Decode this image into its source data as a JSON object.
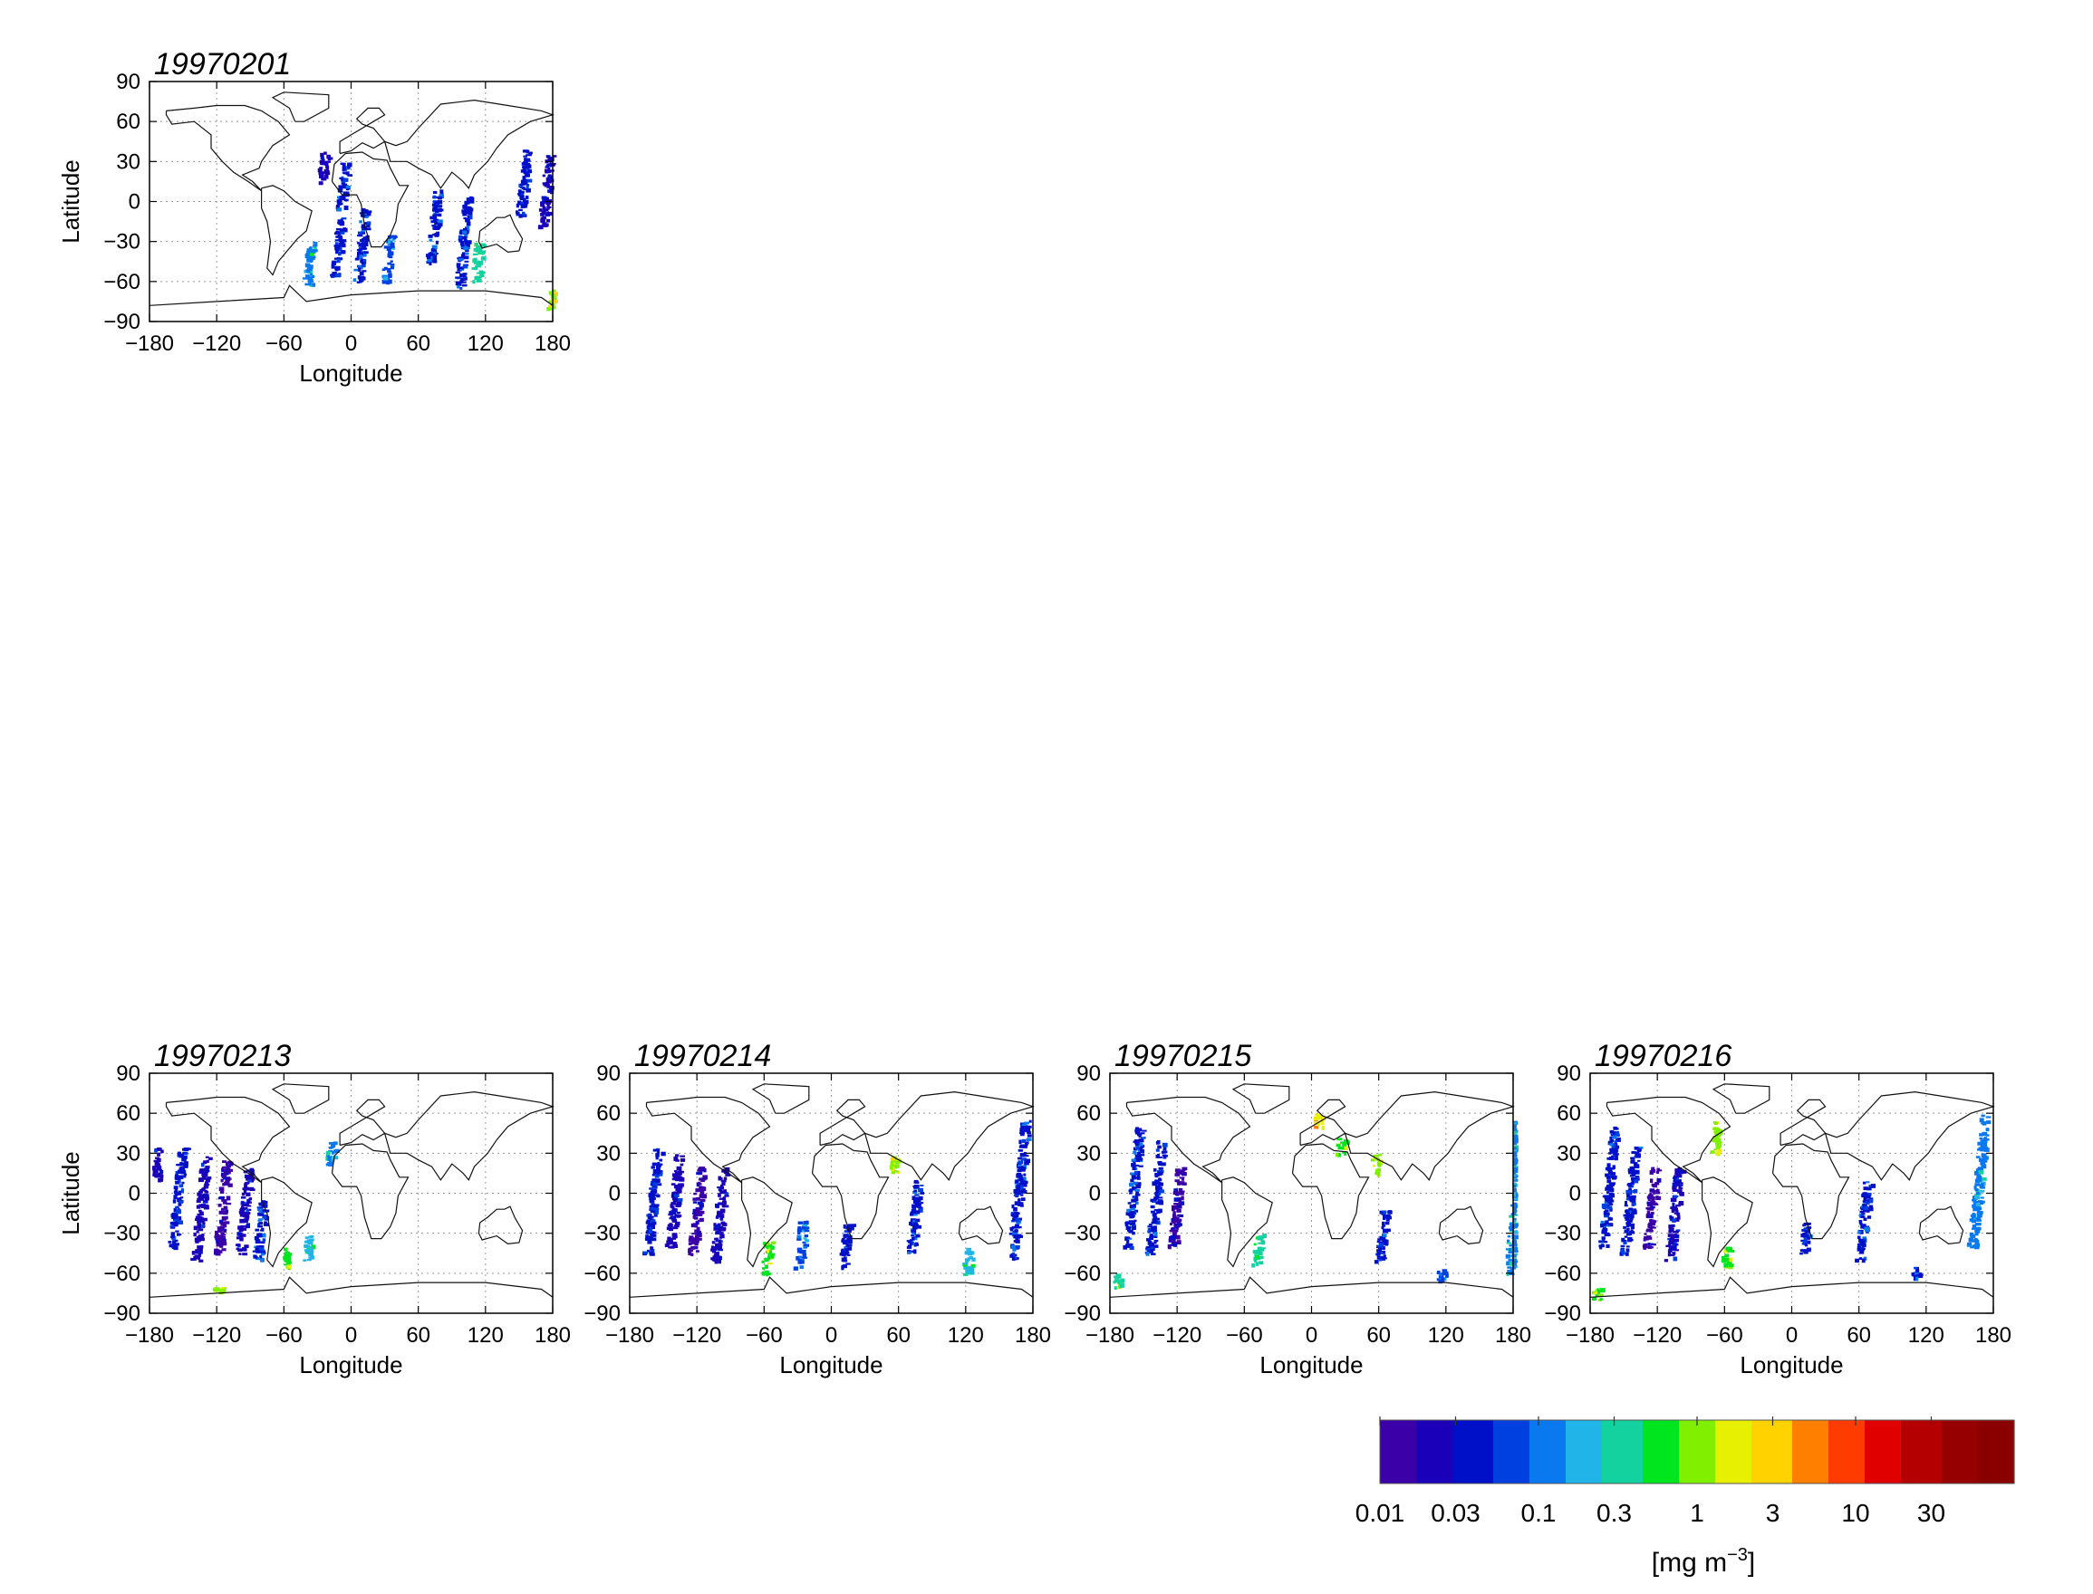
{
  "figure": {
    "axis_xlabel": "Longitude",
    "axis_ylabel": "Latitude",
    "xticks": [
      -180,
      -120,
      -60,
      0,
      60,
      120,
      180
    ],
    "yticks": [
      90,
      60,
      30,
      0,
      -30,
      -60,
      -90
    ],
    "xlim": [
      -180,
      180
    ],
    "ylim": [
      -90,
      90
    ]
  },
  "chart_data": [
    {
      "type": "heatmap",
      "title": "19970201",
      "xlabel": "Longitude",
      "ylabel": "Latitude",
      "xlim": [
        -180,
        180
      ],
      "ylim": [
        -90,
        90
      ],
      "grid": true,
      "swaths": [
        {
          "lon": -27,
          "lat_range": [
            15,
            38
          ],
          "value": 0.02
        },
        {
          "lon": -10,
          "lat_range": [
            -5,
            30
          ],
          "value": 0.04
        },
        {
          "lon": -40,
          "lat_range": [
            -62,
            -30
          ],
          "value": 0.15
        },
        {
          "lon": -15,
          "lat_range": [
            -55,
            -10
          ],
          "value": 0.03
        },
        {
          "lon": 5,
          "lat_range": [
            -60,
            -5
          ],
          "value": 0.04
        },
        {
          "lon": 30,
          "lat_range": [
            -60,
            -25
          ],
          "value": 0.08
        },
        {
          "lon": 70,
          "lat_range": [
            -45,
            10
          ],
          "value": 0.05
        },
        {
          "lon": 95,
          "lat_range": [
            -65,
            5
          ],
          "value": 0.04
        },
        {
          "lon": 110,
          "lat_range": [
            -60,
            -30
          ],
          "value": 0.3
        },
        {
          "lon": 150,
          "lat_range": [
            -10,
            40
          ],
          "value": 0.03
        },
        {
          "lon": 170,
          "lat_range": [
            -20,
            35
          ],
          "value": 0.02
        },
        {
          "lon": 178,
          "lat_range": [
            -80,
            -65
          ],
          "value": 1.0
        }
      ]
    },
    {
      "type": "heatmap",
      "title": "19970213",
      "xlabel": "Longitude",
      "ylabel": "Latitude",
      "xlim": [
        -180,
        180
      ],
      "ylim": [
        -90,
        90
      ],
      "grid": true,
      "swaths": [
        {
          "lon": -175,
          "lat_range": [
            10,
            35
          ],
          "value": 0.02
        },
        {
          "lon": -160,
          "lat_range": [
            -40,
            35
          ],
          "value": 0.03
        },
        {
          "lon": -140,
          "lat_range": [
            -50,
            30
          ],
          "value": 0.02
        },
        {
          "lon": -120,
          "lat_range": [
            -45,
            25
          ],
          "value": 0.015
        },
        {
          "lon": -100,
          "lat_range": [
            -45,
            20
          ],
          "value": 0.02
        },
        {
          "lon": -85,
          "lat_range": [
            -50,
            -5
          ],
          "value": 0.04
        },
        {
          "lon": -60,
          "lat_range": [
            -55,
            -40
          ],
          "value": 0.5
        },
        {
          "lon": -40,
          "lat_range": [
            -50,
            -30
          ],
          "value": 0.2
        },
        {
          "lon": -20,
          "lat_range": [
            20,
            40
          ],
          "value": 0.1
        },
        {
          "lon": -120,
          "lat_range": [
            -75,
            -70
          ],
          "value": 0.8
        }
      ]
    },
    {
      "type": "heatmap",
      "title": "19970214",
      "xlabel": "Longitude",
      "ylabel": "Latitude",
      "xlim": [
        -180,
        180
      ],
      "ylim": [
        -90,
        90
      ],
      "grid": true,
      "swaths": [
        {
          "lon": -165,
          "lat_range": [
            -45,
            35
          ],
          "value": 0.03
        },
        {
          "lon": -145,
          "lat_range": [
            -40,
            30
          ],
          "value": 0.02
        },
        {
          "lon": -125,
          "lat_range": [
            -45,
            20
          ],
          "value": 0.015
        },
        {
          "lon": -105,
          "lat_range": [
            -50,
            20
          ],
          "value": 0.02
        },
        {
          "lon": -60,
          "lat_range": [
            -60,
            -35
          ],
          "value": 0.6
        },
        {
          "lon": -30,
          "lat_range": [
            -55,
            -20
          ],
          "value": 0.08
        },
        {
          "lon": 10,
          "lat_range": [
            -55,
            -20
          ],
          "value": 0.04
        },
        {
          "lon": 55,
          "lat_range": [
            15,
            30
          ],
          "value": 0.8
        },
        {
          "lon": 70,
          "lat_range": [
            -45,
            10
          ],
          "value": 0.05
        },
        {
          "lon": 120,
          "lat_range": [
            -60,
            -40
          ],
          "value": 0.2
        },
        {
          "lon": 160,
          "lat_range": [
            -50,
            55
          ],
          "value": 0.05
        }
      ]
    },
    {
      "type": "heatmap",
      "title": "19970215",
      "xlabel": "Longitude",
      "ylabel": "Latitude",
      "xlim": [
        -180,
        180
      ],
      "ylim": [
        -90,
        90
      ],
      "grid": true,
      "swaths": [
        {
          "lon": -165,
          "lat_range": [
            -40,
            50
          ],
          "value": 0.05
        },
        {
          "lon": -145,
          "lat_range": [
            -45,
            40
          ],
          "value": 0.03
        },
        {
          "lon": -125,
          "lat_range": [
            -40,
            20
          ],
          "value": 0.015
        },
        {
          "lon": -50,
          "lat_range": [
            -55,
            -30
          ],
          "value": 0.3
        },
        {
          "lon": 5,
          "lat_range": [
            50,
            60
          ],
          "value": 2.0
        },
        {
          "lon": 25,
          "lat_range": [
            30,
            42
          ],
          "value": 0.5
        },
        {
          "lon": 55,
          "lat_range": [
            15,
            30
          ],
          "value": 0.8
        },
        {
          "lon": 60,
          "lat_range": [
            -50,
            -10
          ],
          "value": 0.04
        },
        {
          "lon": 115,
          "lat_range": [
            -65,
            -55
          ],
          "value": 0.08
        },
        {
          "lon": 175,
          "lat_range": [
            -60,
            55
          ],
          "value": 0.15
        },
        {
          "lon": -175,
          "lat_range": [
            -70,
            -60
          ],
          "value": 0.4
        }
      ]
    },
    {
      "type": "heatmap",
      "title": "19970216",
      "xlabel": "Longitude",
      "ylabel": "Latitude",
      "xlim": [
        -180,
        180
      ],
      "ylim": [
        -90,
        90
      ],
      "grid": true,
      "swaths": [
        {
          "lon": -170,
          "lat_range": [
            -40,
            50
          ],
          "value": 0.04
        },
        {
          "lon": -150,
          "lat_range": [
            -45,
            35
          ],
          "value": 0.03
        },
        {
          "lon": -130,
          "lat_range": [
            -40,
            20
          ],
          "value": 0.015
        },
        {
          "lon": -110,
          "lat_range": [
            -50,
            20
          ],
          "value": 0.02
        },
        {
          "lon": -60,
          "lat_range": [
            -55,
            -40
          ],
          "value": 0.5
        },
        {
          "lon": -70,
          "lat_range": [
            30,
            55
          ],
          "value": 0.8
        },
        {
          "lon": 10,
          "lat_range": [
            -45,
            -20
          ],
          "value": 0.04
        },
        {
          "lon": 60,
          "lat_range": [
            -50,
            10
          ],
          "value": 0.04
        },
        {
          "lon": 110,
          "lat_range": [
            -65,
            -55
          ],
          "value": 0.05
        },
        {
          "lon": 160,
          "lat_range": [
            -40,
            60
          ],
          "value": 0.1
        },
        {
          "lon": -175,
          "lat_range": [
            -80,
            -70
          ],
          "value": 0.6
        }
      ]
    }
  ],
  "colorbar": {
    "ticks": [
      "0.01",
      "0.03",
      "0.1",
      "0.3",
      "1",
      "3",
      "10",
      "30"
    ],
    "tick_values": [
      0.01,
      0.03,
      0.1,
      0.3,
      1,
      3,
      10,
      30
    ],
    "range": [
      0.01,
      100
    ],
    "scale": "log",
    "units_base": "[mg m",
    "units_exp": "−3",
    "units_close": "]",
    "colors": [
      "#3b00a8",
      "#1a00b8",
      "#0010c8",
      "#0040e0",
      "#0a78ee",
      "#20b4e8",
      "#14d2a0",
      "#00e61e",
      "#80f000",
      "#e6f000",
      "#ffd200",
      "#ff8000",
      "#ff3c00",
      "#e00000",
      "#b40000",
      "#960000",
      "#8a0000"
    ]
  }
}
